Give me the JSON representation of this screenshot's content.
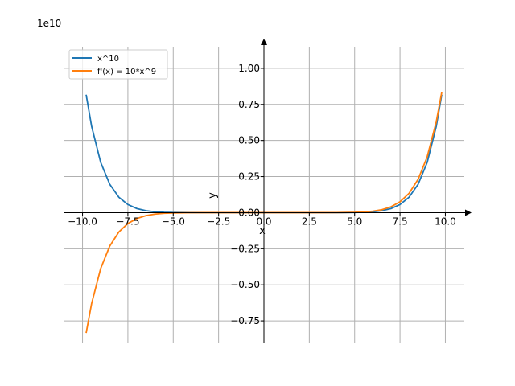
{
  "chart_data": {
    "type": "line",
    "title": "",
    "xlabel": "x",
    "ylabel": "y",
    "y_scale_label": "1e10",
    "xlim": [
      -11.0,
      11.0
    ],
    "ylim": [
      -0.9,
      1.15
    ],
    "y_multiplier": 10000000000,
    "x_ticks": [
      -10.0,
      -7.5,
      -5.0,
      -2.5,
      0.0,
      2.5,
      5.0,
      7.5,
      10.0
    ],
    "x_tick_labels": [
      "−10.0",
      "−7.5",
      "−5.0",
      "−2.5",
      "0.0",
      "2.5",
      "5.0",
      "7.5",
      "10.0"
    ],
    "y_ticks": [
      -0.75,
      -0.5,
      -0.25,
      0.0,
      0.25,
      0.5,
      0.75,
      1.0
    ],
    "y_tick_labels": [
      "−0.75",
      "−0.50",
      "−0.25",
      "0.00",
      "0.25",
      "0.50",
      "0.75",
      "1.00"
    ],
    "grid": true,
    "legend_position": "top-left",
    "x": [
      -9.8,
      -9.5,
      -9.0,
      -8.5,
      -8.0,
      -7.5,
      -7.0,
      -6.5,
      -6.0,
      -5.5,
      -5.0,
      -4.0,
      -3.0,
      -2.0,
      -1.0,
      0.0,
      1.0,
      2.0,
      3.0,
      4.0,
      5.0,
      5.5,
      6.0,
      6.5,
      7.0,
      7.5,
      8.0,
      8.5,
      9.0,
      9.5,
      9.8
    ],
    "series": [
      {
        "name": "x^10",
        "color": "#1f77b4",
        "values": [
          0.8171,
          0.5987,
          0.3487,
          0.1969,
          0.1074,
          0.0563,
          0.0282,
          0.0135,
          0.006,
          0.0025,
          0.00098,
          0.0001,
          0.0,
          0.0,
          0.0,
          0.0,
          0.0,
          0.0,
          0.0,
          0.0001,
          0.00098,
          0.0025,
          0.006,
          0.0135,
          0.0282,
          0.0563,
          0.1074,
          0.1969,
          0.3487,
          0.5987,
          0.8171
        ]
      },
      {
        "name": "f'(x) = 10*x^9",
        "color": "#ff7f0e",
        "values": [
          -0.8338,
          -0.6302,
          -0.3874,
          -0.2316,
          -0.1342,
          -0.0751,
          -0.0404,
          -0.0207,
          -0.0101,
          -0.0046,
          -0.002,
          -0.0003,
          0.0,
          0.0,
          0.0,
          0.0,
          0.0,
          0.0,
          0.0,
          0.0003,
          0.002,
          0.0046,
          0.0101,
          0.0207,
          0.0404,
          0.0751,
          0.1342,
          0.2316,
          0.3874,
          0.6302,
          0.8338
        ]
      }
    ]
  }
}
